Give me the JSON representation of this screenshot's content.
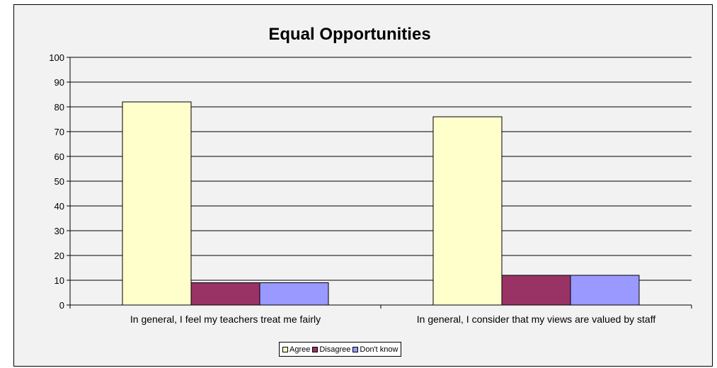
{
  "chart_data": {
    "type": "bar",
    "title": "Equal Opportunities",
    "xlabel": "",
    "ylabel": "",
    "ylim": [
      0,
      100
    ],
    "yticks": [
      0,
      10,
      20,
      30,
      40,
      50,
      60,
      70,
      80,
      90,
      100
    ],
    "grid": true,
    "legend_position": "bottom",
    "categories": [
      "In general, I feel my teachers treat me fairly",
      "In general, I consider that my views are valued by staff"
    ],
    "series": [
      {
        "name": "Agree",
        "values": [
          82,
          76
        ],
        "color": "#ffffcc"
      },
      {
        "name": "Disagree",
        "values": [
          9,
          12
        ],
        "color": "#993366"
      },
      {
        "name": "Don't know",
        "values": [
          9,
          12
        ],
        "color": "#9999ff"
      }
    ]
  }
}
